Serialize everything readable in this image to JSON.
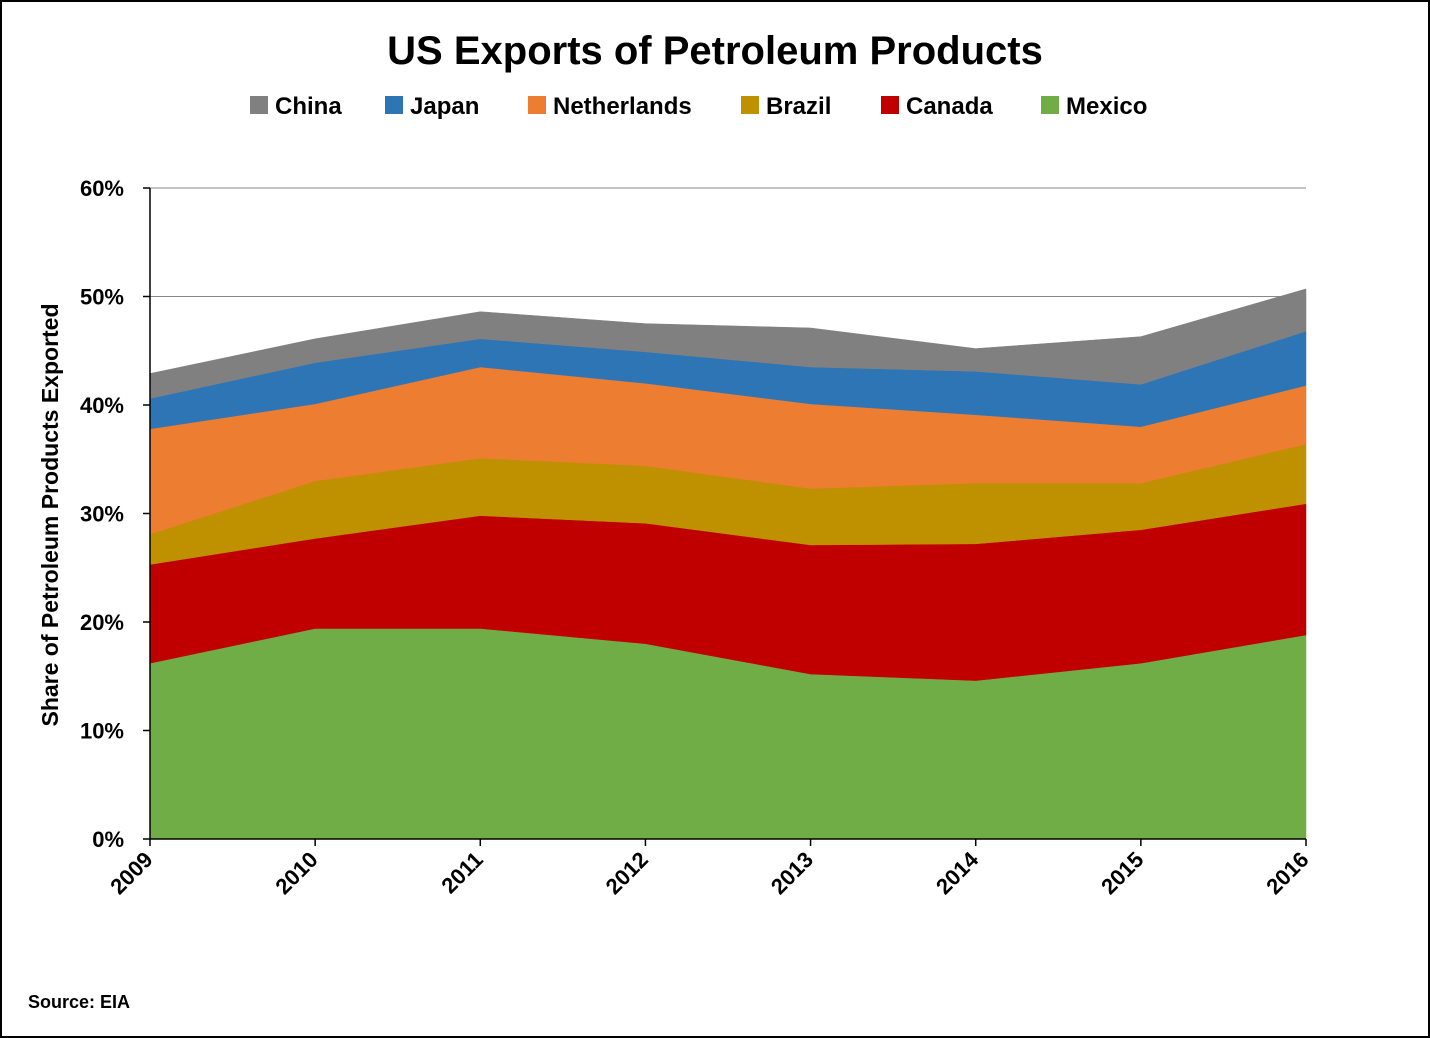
{
  "chart_data": {
    "type": "area",
    "stacked": true,
    "title": "US Exports of Petroleum Products",
    "ylabel": "Share of Petroleum Products Exported",
    "xlabel": "",
    "source": "Source: EIA",
    "x": [
      "2009",
      "2010",
      "2011",
      "2012",
      "2013",
      "2014",
      "2015",
      "2016"
    ],
    "ylim": [
      0,
      60
    ],
    "yticks": [
      0,
      10,
      20,
      30,
      40,
      50,
      60
    ],
    "ytick_labels": [
      "0%",
      "10%",
      "20%",
      "30%",
      "40%",
      "50%",
      "60%"
    ],
    "grid": "horizontal",
    "legend": "top",
    "legend_order": [
      "China",
      "Japan",
      "Netherlands",
      "Brazil",
      "Canada",
      "Mexico"
    ],
    "series": [
      {
        "name": "Mexico",
        "color": "#70AD47",
        "values": [
          16.2,
          19.4,
          19.4,
          18.0,
          15.2,
          14.6,
          16.2,
          18.8
        ]
      },
      {
        "name": "Canada",
        "color": "#C00000",
        "values": [
          9.1,
          8.3,
          10.4,
          11.1,
          11.9,
          12.6,
          12.3,
          12.1
        ]
      },
      {
        "name": "Brazil",
        "color": "#BF9000",
        "values": [
          2.8,
          5.3,
          5.3,
          5.3,
          5.2,
          5.6,
          4.3,
          5.5
        ]
      },
      {
        "name": "Netherlands",
        "color": "#ED7D31",
        "values": [
          9.7,
          7.1,
          8.4,
          7.6,
          7.8,
          6.3,
          5.2,
          5.4
        ]
      },
      {
        "name": "Japan",
        "color": "#2E75B6",
        "values": [
          2.8,
          3.8,
          2.6,
          2.9,
          3.4,
          4.0,
          3.9,
          5.0
        ]
      },
      {
        "name": "China",
        "color": "#808080",
        "values": [
          2.3,
          2.2,
          2.5,
          2.6,
          3.6,
          2.1,
          4.4,
          3.9
        ]
      }
    ]
  }
}
